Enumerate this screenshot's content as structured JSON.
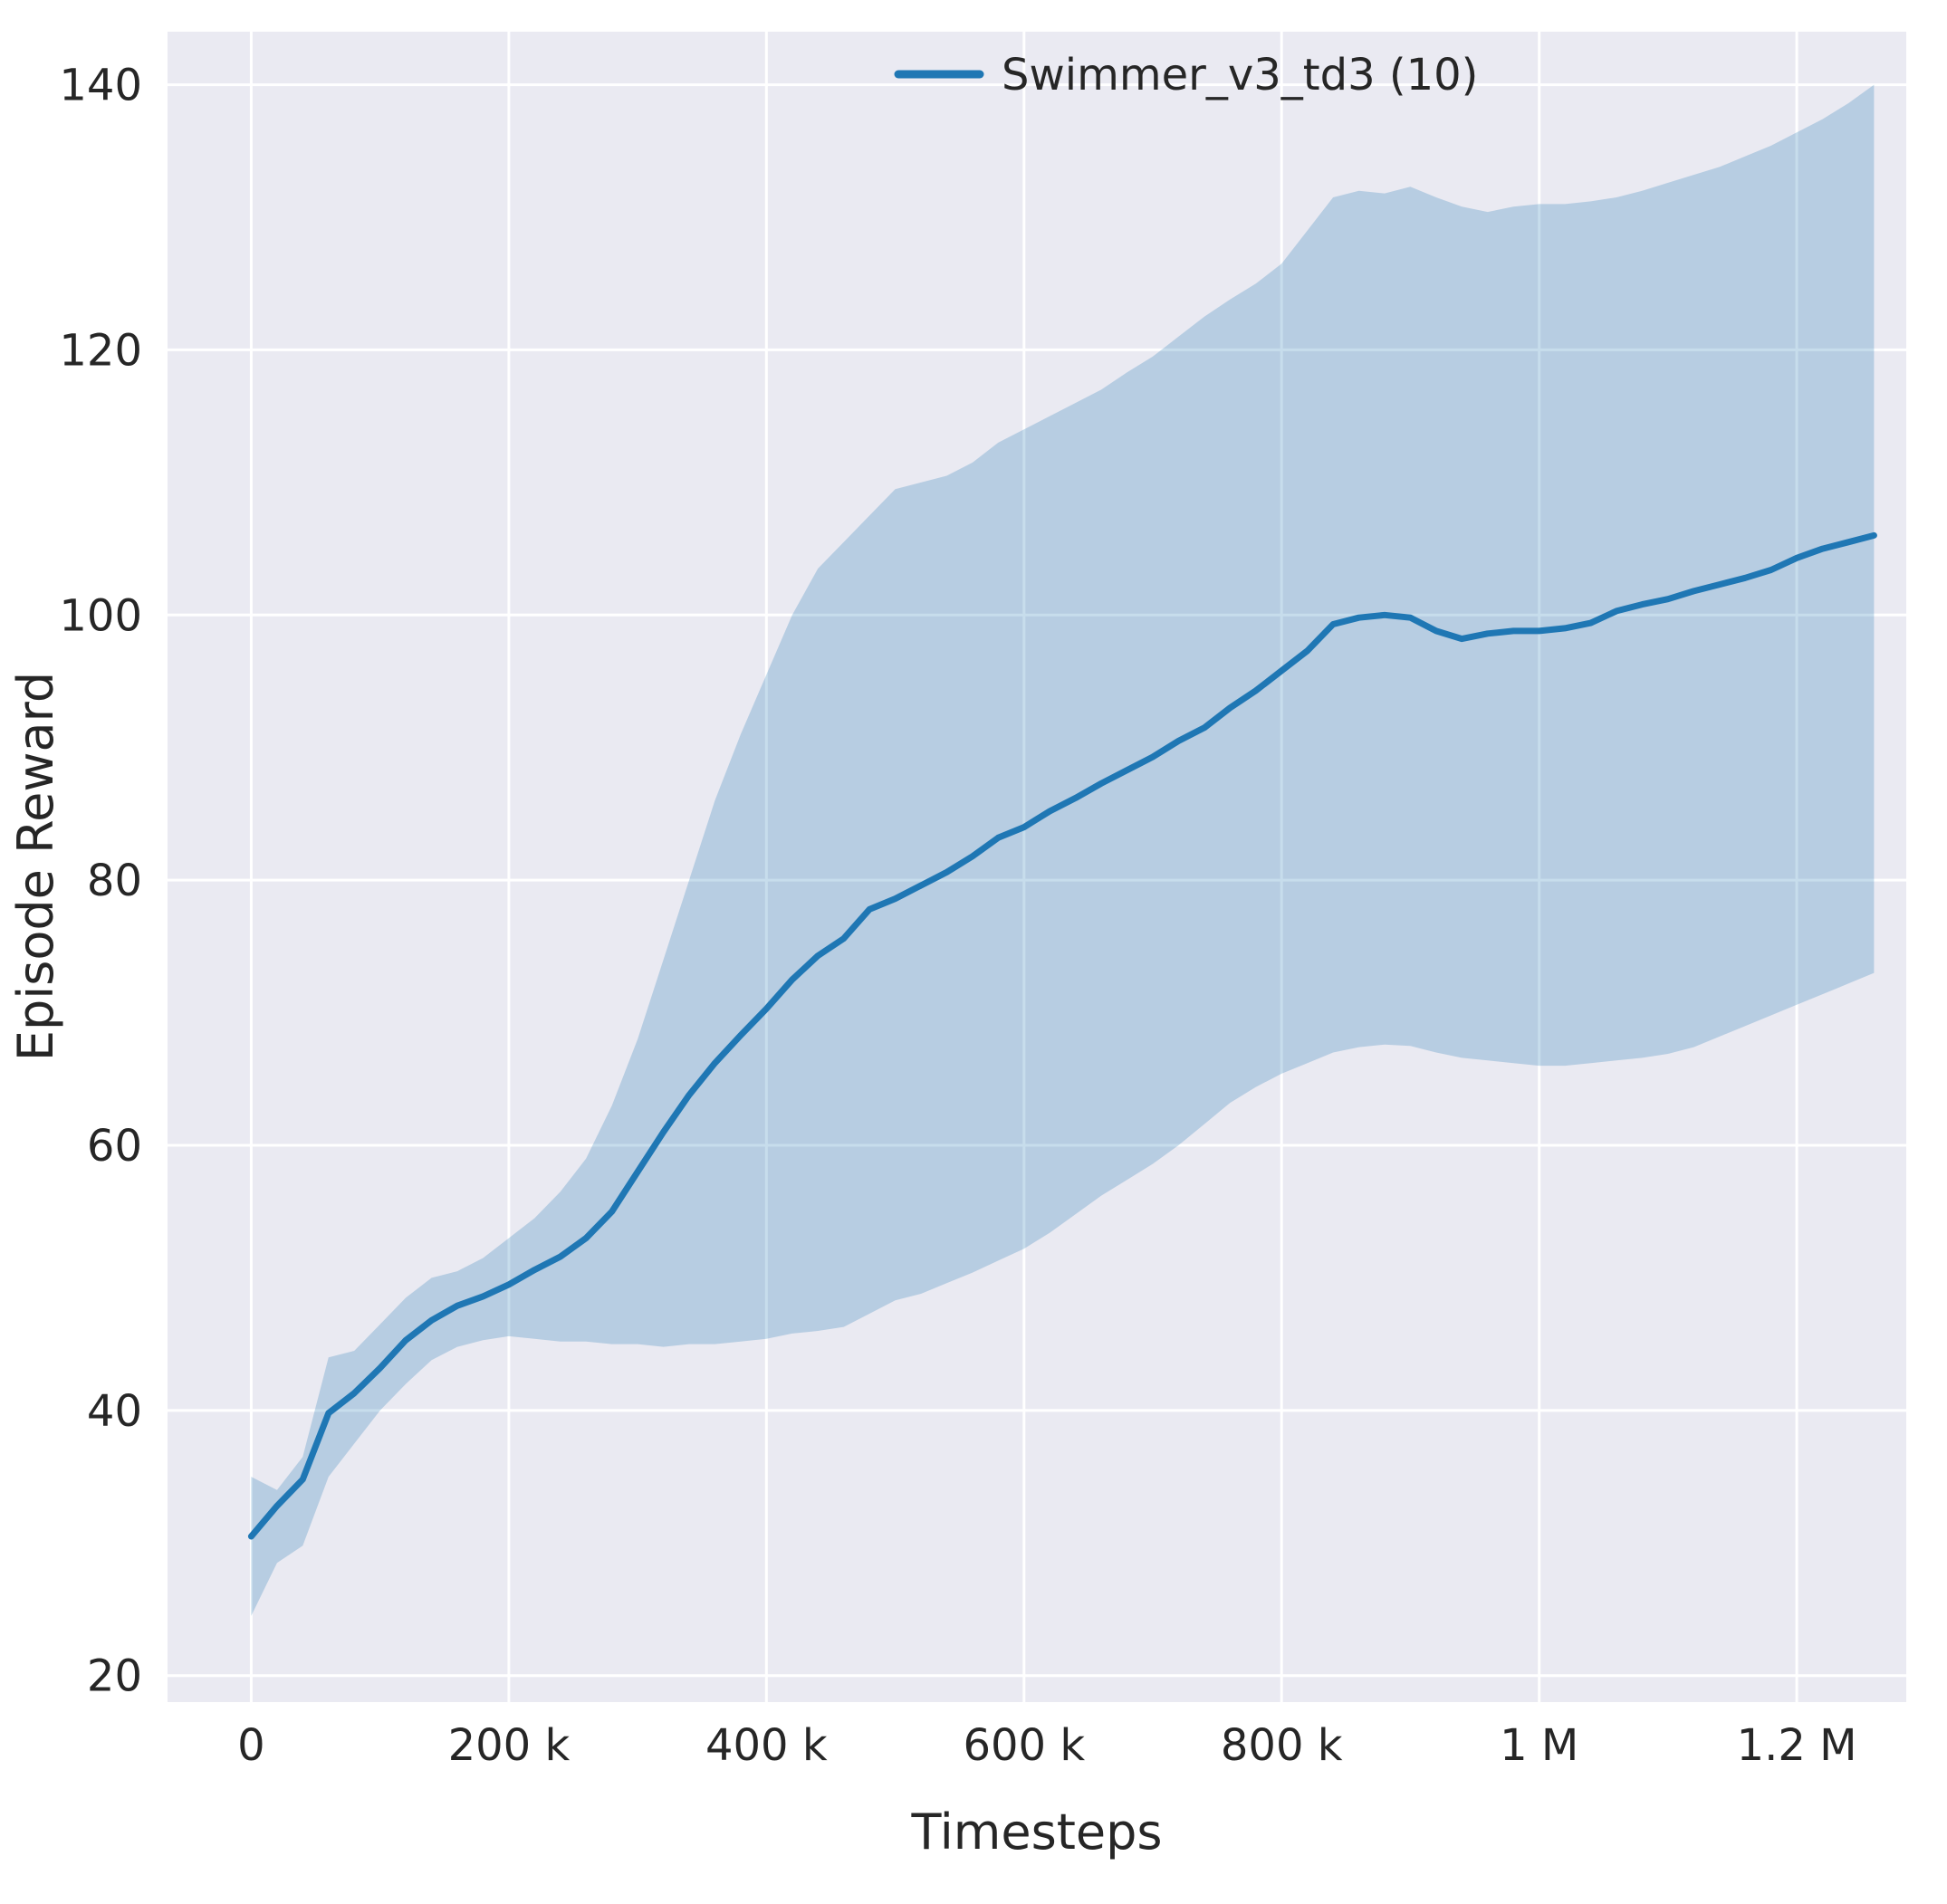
{
  "figure": {
    "background": "#ffffff",
    "axes_background": "#eaeaf2",
    "grid_color": "#ffffff",
    "tick_color": "#262626",
    "label_color": "#262626"
  },
  "chart_data": {
    "type": "line",
    "title": "",
    "xlabel": "Timesteps",
    "ylabel": "Episode Reward",
    "xlim": [
      -65000,
      1285000
    ],
    "ylim": [
      18,
      144
    ],
    "grid": true,
    "x_ticks": [
      {
        "value": 0,
        "label": "0"
      },
      {
        "value": 200000,
        "label": "200 k"
      },
      {
        "value": 400000,
        "label": "400 k"
      },
      {
        "value": 600000,
        "label": "600 k"
      },
      {
        "value": 800000,
        "label": "800 k"
      },
      {
        "value": 1000000,
        "label": "1 M"
      },
      {
        "value": 1200000,
        "label": "1.2 M"
      }
    ],
    "y_ticks": [
      {
        "value": 20,
        "label": "20"
      },
      {
        "value": 40,
        "label": "40"
      },
      {
        "value": 60,
        "label": "60"
      },
      {
        "value": 80,
        "label": "80"
      },
      {
        "value": 100,
        "label": "100"
      },
      {
        "value": 120,
        "label": "120"
      },
      {
        "value": 140,
        "label": "140"
      }
    ],
    "legend": {
      "position": "upper right",
      "entries": [
        "Swimmer_v3_td3 (10)"
      ]
    },
    "series": [
      {
        "name": "Swimmer_v3_td3 (10)",
        "color": "#1f77b4",
        "band_alpha": 0.25,
        "x": [
          0,
          20000,
          40000,
          60000,
          80000,
          100000,
          120000,
          140000,
          160000,
          180000,
          200000,
          220000,
          240000,
          260000,
          280000,
          300000,
          320000,
          340000,
          360000,
          380000,
          400000,
          420000,
          440000,
          460000,
          480000,
          500000,
          520000,
          540000,
          560000,
          580000,
          600000,
          620000,
          640000,
          660000,
          680000,
          700000,
          720000,
          740000,
          760000,
          780000,
          800000,
          820000,
          840000,
          860000,
          880000,
          900000,
          920000,
          940000,
          960000,
          980000,
          1000000,
          1020000,
          1040000,
          1060000,
          1080000,
          1100000,
          1120000,
          1140000,
          1160000,
          1180000,
          1200000,
          1220000,
          1240000,
          1260000
        ],
        "mean": [
          30.5,
          32.8,
          34.8,
          39.8,
          41.3,
          43.2,
          45.3,
          46.8,
          47.9,
          48.6,
          49.5,
          50.6,
          51.6,
          53.0,
          55.0,
          58.0,
          61.0,
          63.8,
          66.2,
          68.3,
          70.3,
          72.5,
          74.3,
          75.6,
          77.8,
          78.6,
          79.6,
          80.6,
          81.8,
          83.2,
          84.0,
          85.2,
          86.2,
          87.3,
          88.3,
          89.3,
          90.5,
          91.5,
          93.0,
          94.3,
          95.8,
          97.3,
          99.3,
          99.8,
          100.0,
          99.8,
          98.8,
          98.2,
          98.6,
          98.8,
          98.8,
          99.0,
          99.4,
          100.3,
          100.8,
          101.2,
          101.8,
          102.3,
          102.8,
          103.4,
          104.3,
          105.0,
          105.5,
          106.0
        ],
        "band_lower": [
          24.5,
          28.5,
          29.8,
          35.0,
          37.5,
          40.0,
          42.0,
          43.8,
          44.8,
          45.3,
          45.6,
          45.4,
          45.2,
          45.2,
          45.0,
          45.0,
          44.8,
          45.0,
          45.0,
          45.2,
          45.4,
          45.8,
          46.0,
          46.3,
          47.3,
          48.3,
          48.8,
          49.6,
          50.4,
          51.3,
          52.2,
          53.4,
          54.8,
          56.2,
          57.4,
          58.6,
          60.0,
          61.6,
          63.2,
          64.4,
          65.4,
          66.2,
          67.0,
          67.4,
          67.6,
          67.5,
          67.0,
          66.6,
          66.4,
          66.2,
          66.0,
          66.0,
          66.2,
          66.4,
          66.6,
          66.9,
          67.4,
          68.2,
          69.0,
          69.8,
          70.6,
          71.4,
          72.2,
          73.0
        ],
        "band_upper": [
          35.0,
          34.0,
          36.5,
          44.0,
          44.5,
          46.5,
          48.5,
          50.0,
          50.5,
          51.5,
          53.0,
          54.5,
          56.5,
          59.0,
          63.0,
          68.0,
          74.0,
          80.0,
          86.0,
          91.0,
          95.5,
          100.0,
          103.5,
          105.5,
          107.5,
          109.5,
          110.0,
          110.5,
          111.5,
          113.0,
          114.0,
          115.0,
          116.0,
          117.0,
          118.3,
          119.5,
          121.0,
          122.5,
          123.8,
          125.0,
          126.5,
          129.0,
          131.5,
          132.0,
          131.8,
          132.3,
          131.5,
          130.8,
          130.4,
          130.8,
          131.0,
          131.0,
          131.2,
          131.5,
          132.0,
          132.6,
          133.2,
          133.8,
          134.6,
          135.4,
          136.4,
          137.4,
          138.6,
          140.0
        ]
      }
    ]
  }
}
